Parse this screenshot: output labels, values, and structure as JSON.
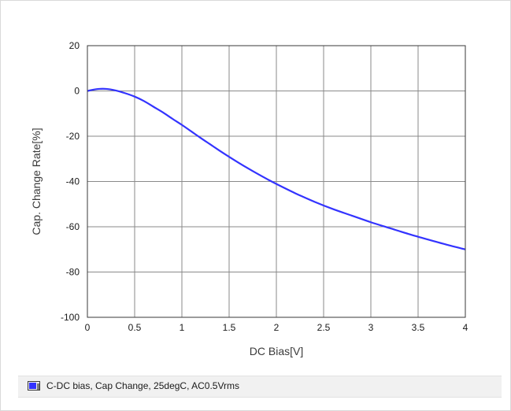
{
  "chart_data": {
    "type": "line",
    "xlabel": "DC Bias[V]",
    "ylabel": "Cap. Change Rate[%]",
    "xlim": [
      0,
      4
    ],
    "ylim": [
      -100,
      20
    ],
    "xticks": [
      "0",
      "0.5",
      "1",
      "1.5",
      "2",
      "2.5",
      "3",
      "3.5",
      "4"
    ],
    "yticks": [
      "20",
      "0",
      "-20",
      "-40",
      "-60",
      "-80",
      "-100"
    ],
    "grid": true,
    "legend_position": "bottom",
    "series": [
      {
        "name": "C-DC bias, Cap Change, 25degC, AC0.5Vrms",
        "color": "#3333ff",
        "x": [
          0,
          0.1,
          0.2,
          0.3,
          0.4,
          0.5,
          0.6,
          0.7,
          0.8,
          0.9,
          1.0,
          1.1,
          1.2,
          1.3,
          1.4,
          1.5,
          1.6,
          1.7,
          1.8,
          1.9,
          2.0,
          2.2,
          2.4,
          2.6,
          2.8,
          3.0,
          3.2,
          3.4,
          3.6,
          3.8,
          4.0
        ],
        "y": [
          0,
          0.8,
          0.9,
          0.2,
          -1.0,
          -2.5,
          -4.5,
          -7.0,
          -9.5,
          -12.3,
          -15.0,
          -17.9,
          -20.8,
          -23.6,
          -26.4,
          -29.1,
          -31.7,
          -34.2,
          -36.6,
          -38.9,
          -41.1,
          -45.2,
          -48.9,
          -52.2,
          -55.1,
          -58.0,
          -60.6,
          -63.2,
          -65.6,
          -67.9,
          -70.0
        ]
      }
    ]
  }
}
